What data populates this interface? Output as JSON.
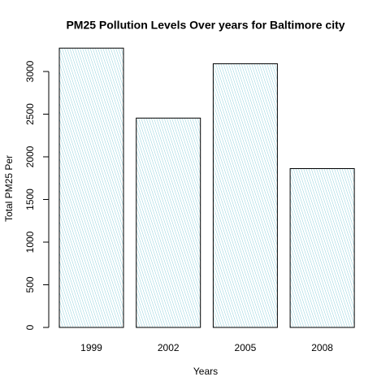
{
  "chart_data": {
    "type": "bar",
    "title": "PM25 Pollution Levels Over years for Baltimore city",
    "xlabel": "Years",
    "ylabel": "Total PM25 Per",
    "categories": [
      "1999",
      "2002",
      "2005",
      "2008"
    ],
    "values": [
      3274,
      2454,
      3091,
      1862
    ],
    "color": "#8fd0dc",
    "ylim": [
      0,
      3400
    ],
    "yticks": [
      0,
      500,
      1000,
      1500,
      2000,
      2500,
      3000
    ],
    "grid": false
  }
}
